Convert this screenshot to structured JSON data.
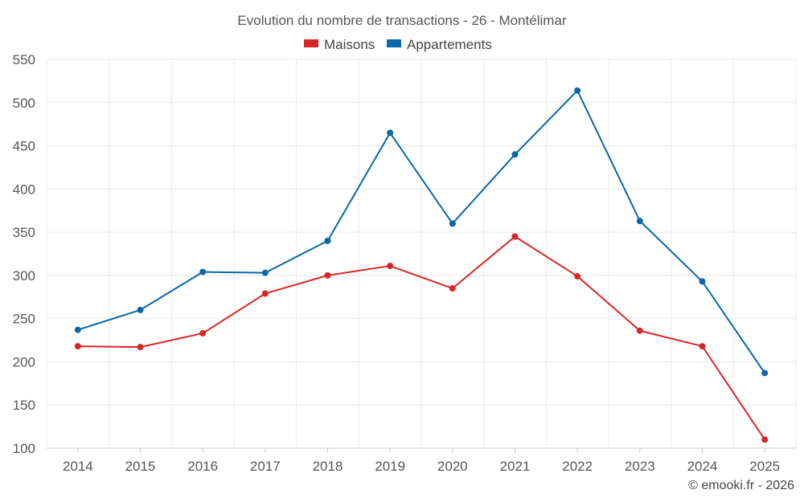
{
  "chart_data": {
    "type": "line",
    "title": "Evolution du nombre de transactions - 26 - Montélimar",
    "categories": [
      "2014",
      "2015",
      "2016",
      "2017",
      "2018",
      "2019",
      "2020",
      "2021",
      "2022",
      "2023",
      "2024",
      "2025"
    ],
    "series": [
      {
        "name": "Maisons",
        "color": "#d62728",
        "values": [
          218,
          217,
          233,
          279,
          300,
          311,
          285,
          345,
          299,
          236,
          218,
          110
        ]
      },
      {
        "name": "Appartements",
        "color": "#0868a8",
        "values": [
          237,
          260,
          304,
          303,
          340,
          465,
          360,
          440,
          514,
          363,
          293,
          187
        ]
      }
    ],
    "ylim": [
      100,
      550
    ],
    "yticks": [
      100,
      150,
      200,
      250,
      300,
      350,
      400,
      450,
      500,
      550
    ],
    "grid": true,
    "legend_position": "top-center",
    "xlabel": "",
    "ylabel": ""
  },
  "credit": "© emooki.fr - 2026"
}
